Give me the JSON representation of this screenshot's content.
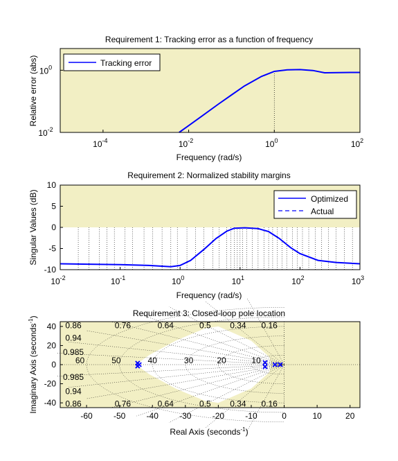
{
  "figure": {
    "background": "#ffffff",
    "shade_color": "#f2efc4",
    "line_color": "#0000ff"
  },
  "chart_data": [
    {
      "type": "line",
      "title": "Requirement 1: Tracking error as a function of frequency",
      "xlabel": "Frequency (rad/s)",
      "ylabel": "Relative error (abs)",
      "xscale": "log",
      "yscale": "log",
      "xlim": [
        1e-05,
        100
      ],
      "ylim": [
        0.01,
        5
      ],
      "xtick_exponents": [
        "-4",
        "-2",
        "0",
        "2"
      ],
      "ytick_exponents": [
        "-2",
        "0"
      ],
      "tick_base": "10",
      "grid": false,
      "shaded_region": "entire plot area above the requirement curve",
      "legend": {
        "position": "top-left",
        "entries": [
          "Tracking error"
        ]
      },
      "series": [
        {
          "name": "Tracking error",
          "style": "solid",
          "x": [
            0.006,
            0.01,
            0.02,
            0.05,
            0.1,
            0.2,
            0.5,
            1,
            2,
            4,
            8,
            15,
            30,
            60,
            100
          ],
          "y": [
            0.01,
            0.0165,
            0.033,
            0.082,
            0.16,
            0.31,
            0.63,
            0.92,
            1.03,
            1.05,
            0.98,
            0.83,
            0.84,
            0.85,
            0.85
          ]
        }
      ],
      "vlines": [
        1
      ]
    },
    {
      "type": "line",
      "title": "Requirement 2: Normalized stability margins",
      "xlabel": "Frequency (rad/s)",
      "ylabel": "Singular Values (dB)",
      "xscale": "log",
      "xlim": [
        0.01,
        1000
      ],
      "ylim": [
        -10,
        10
      ],
      "xtick_exponents": [
        "-2",
        "-1",
        "0",
        "1",
        "2",
        "3"
      ],
      "tick_base": "10",
      "yticks": [
        "-10",
        "-5",
        "0",
        "5",
        "10"
      ],
      "shaded_region": "above 0 dB",
      "legend": {
        "position": "top-right",
        "entries": [
          "Optimized",
          "Actual"
        ]
      },
      "series": [
        {
          "name": "Optimized",
          "style": "solid",
          "x": [
            0.01,
            0.03,
            0.1,
            0.3,
            0.7,
            1,
            1.5,
            2.5,
            4,
            6,
            8,
            12,
            20,
            30,
            45,
            70,
            100,
            200,
            400,
            1000
          ],
          "y": [
            -8.6,
            -8.7,
            -8.8,
            -9.0,
            -9.3,
            -9.0,
            -7.8,
            -5.2,
            -2.6,
            -0.9,
            -0.2,
            -0.1,
            -0.3,
            -1.0,
            -2.6,
            -4.8,
            -6.2,
            -7.8,
            -8.3,
            -8.6
          ]
        },
        {
          "name": "Actual",
          "style": "dashed",
          "x": [
            0.01,
            0.03,
            0.1,
            0.3,
            0.7,
            1,
            1.5,
            2.5,
            4,
            6,
            8,
            12,
            20,
            30,
            45,
            70,
            100,
            200,
            400,
            1000
          ],
          "y": [
            -8.6,
            -8.7,
            -8.8,
            -9.0,
            -9.3,
            -9.0,
            -7.8,
            -5.2,
            -2.6,
            -0.9,
            -0.2,
            -0.1,
            -0.3,
            -1.0,
            -2.6,
            -4.8,
            -6.2,
            -7.8,
            -8.3,
            -8.6
          ]
        }
      ],
      "vlines": [
        0.02,
        0.03,
        0.045,
        0.06,
        0.08,
        0.12,
        0.16,
        0.25,
        0.35,
        0.5,
        0.7,
        0.9,
        1.3,
        1.8,
        2.5,
        3.5,
        4.5,
        6,
        7,
        8,
        9,
        10,
        11,
        13,
        16,
        20,
        25,
        30,
        35,
        42,
        50,
        60,
        75,
        90,
        110,
        140,
        180,
        230,
        300,
        400,
        550,
        750
      ]
    },
    {
      "type": "scatter",
      "title": "Requirement 3: Closed-loop pole location",
      "xlabel": "Real Axis (seconds",
      "ylabel": "Imaginary Axis (seconds",
      "axis_unit_exponent": "-1",
      "xlim": [
        -68,
        23
      ],
      "ylim": [
        -45,
        45
      ],
      "xticks": [
        "-60",
        "-50",
        "-40",
        "-30",
        "-20",
        "-10",
        "0",
        "10",
        "20"
      ],
      "yticks": [
        "-40",
        "-20",
        "0",
        "20",
        "40"
      ],
      "shaded_region": "outside the allowed pole region",
      "damping_labels_top": [
        "0.86",
        "0.76",
        "0.64",
        "0.5",
        "0.34",
        "0.16"
      ],
      "damping_labels_left": [
        "0.94",
        "0.985"
      ],
      "damping_labels_left_lower": [
        "0.985",
        "0.94"
      ],
      "damping_labels_bottom": [
        "0.86",
        "0.76",
        "0.64",
        "0.5",
        "0.34",
        "0.16"
      ],
      "frequency_labels": [
        "60",
        "50",
        "40",
        "30",
        "20",
        "10"
      ],
      "poles": [
        {
          "x": -44.5,
          "y": 1.5
        },
        {
          "x": -44.5,
          "y": -1.5
        },
        {
          "x": -44.0,
          "y": 0
        },
        {
          "x": -5.8,
          "y": 2.2
        },
        {
          "x": -5.8,
          "y": -2.2
        },
        {
          "x": -2.8,
          "y": 0
        },
        {
          "x": -1.2,
          "y": 0
        }
      ]
    }
  ]
}
